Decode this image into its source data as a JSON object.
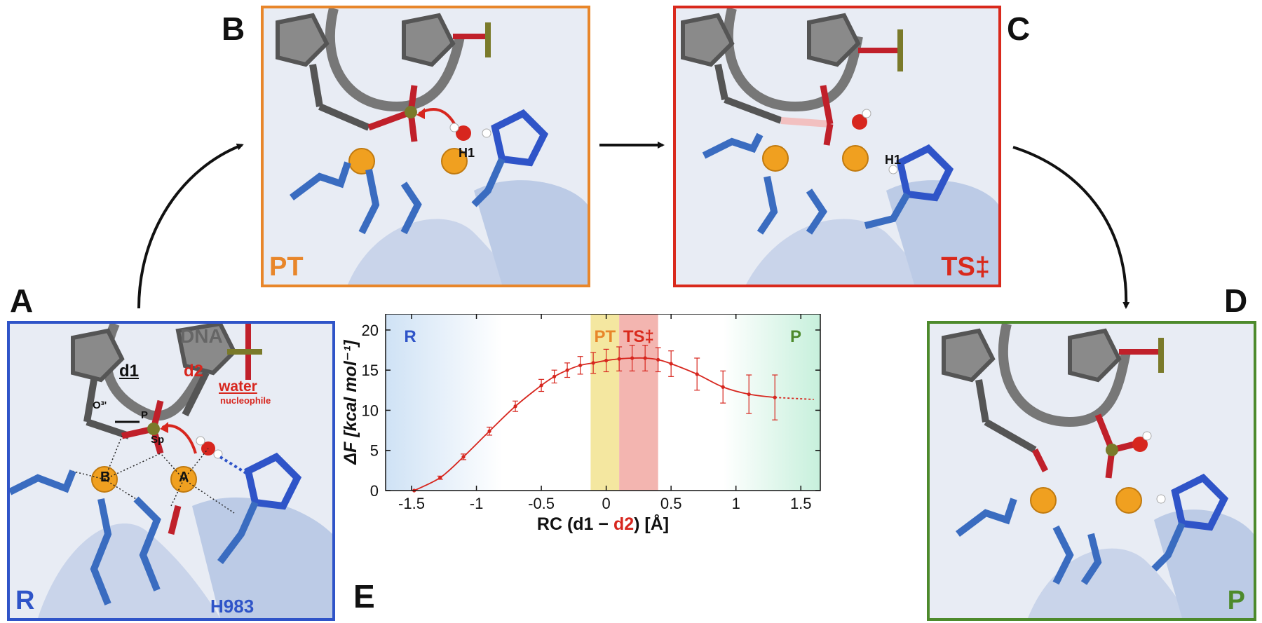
{
  "panels": {
    "A": {
      "letter": "A",
      "state": "R",
      "labels": {
        "dna": "DNA",
        "d1": "d1",
        "d2": "d2",
        "water": "water",
        "nucleophile": "nucleophile",
        "o3": "O³'",
        "p": "P",
        "sp": "Sp",
        "metal_b": "B",
        "metal_a": "A",
        "h983": "H983"
      }
    },
    "B": {
      "letter": "B",
      "state": "PT",
      "labels": {
        "h1": "H1"
      }
    },
    "C": {
      "letter": "C",
      "state": "TS‡",
      "labels": {
        "h1": "H1"
      }
    },
    "D": {
      "letter": "D",
      "state": "P"
    },
    "E": {
      "letter": "E"
    }
  },
  "colors": {
    "R": "#2f54c8",
    "PT": "#e8862a",
    "TS": "#d9291c",
    "P": "#4d8a2c",
    "curve": "#d7261e",
    "dna": "#5a5a5a",
    "protein": "#2f63c0",
    "metal": "#f0a020"
  },
  "chart_data": {
    "type": "line",
    "xlabel": "RC (d1 − d2) [Å]",
    "xlabel_parts": {
      "prefix": "RC (d1 − ",
      "highlight": "d2",
      "suffix": ") [Å]"
    },
    "ylabel": "ΔF [kcal mol⁻¹]",
    "xlim": [
      -1.7,
      1.65
    ],
    "ylim": [
      0,
      22
    ],
    "xticks": [
      -1.5,
      -1,
      -0.5,
      0,
      0.5,
      1,
      1.5
    ],
    "xtick_labels": [
      "-1.5",
      "-1",
      "-0.5",
      "0",
      "0.5",
      "1",
      "1.5"
    ],
    "yticks": [
      0,
      5,
      10,
      15,
      20
    ],
    "ytick_labels": [
      "0",
      "5",
      "10",
      "15",
      "20"
    ],
    "regions": [
      {
        "label": "R",
        "x": [
          -1.7,
          -0.8
        ],
        "color": "#cfe2f5",
        "style": "fade-right"
      },
      {
        "label": "PT",
        "x": [
          -0.12,
          0.1
        ],
        "color": "#f4e7a0",
        "style": "solid"
      },
      {
        "label": "TS‡",
        "x": [
          0.1,
          0.4
        ],
        "color": "#f3b5b0",
        "style": "solid"
      },
      {
        "label": "P",
        "x": [
          0.9,
          1.65
        ],
        "color": "#c7f0dc",
        "style": "fade-left"
      }
    ],
    "series": [
      {
        "x": [
          -1.48,
          -1.28,
          -1.1,
          -0.9,
          -0.7,
          -0.5,
          -0.4,
          -0.3,
          -0.2,
          -0.1,
          0.0,
          0.1,
          0.2,
          0.3,
          0.4,
          0.5,
          0.7,
          0.9,
          1.1,
          1.3
        ],
        "y": [
          0.0,
          1.6,
          4.2,
          7.4,
          10.5,
          13.1,
          14.2,
          15.0,
          15.6,
          15.9,
          16.2,
          16.4,
          16.5,
          16.5,
          16.3,
          15.8,
          14.5,
          12.9,
          12.0,
          11.6
        ],
        "err": [
          0.05,
          0.2,
          0.35,
          0.5,
          0.65,
          0.75,
          0.8,
          0.9,
          1.1,
          1.3,
          1.4,
          1.5,
          1.6,
          1.6,
          1.5,
          1.6,
          2.0,
          2.0,
          2.4,
          2.8
        ]
      }
    ],
    "extrapolation": {
      "x": [
        1.3,
        1.6
      ],
      "y": [
        11.6,
        11.35
      ],
      "style": "dotted"
    }
  }
}
